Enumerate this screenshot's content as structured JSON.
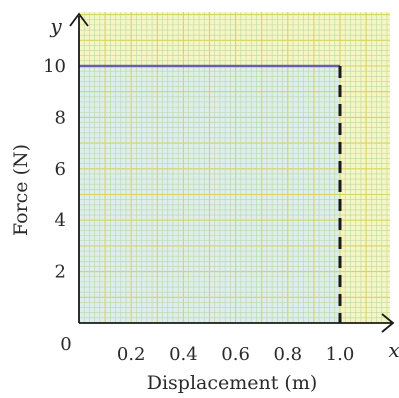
{
  "chart_data": {
    "type": "line",
    "title": "",
    "xlabel": "Displacement (m)",
    "ylabel": "Force (N)",
    "x_axis_symbol": "x",
    "y_axis_symbol": "y",
    "origin_label": "0",
    "xlim": [
      0,
      1.2
    ],
    "ylim": [
      0,
      12
    ],
    "x_ticks": [
      {
        "value": 0.2,
        "label": "0.2"
      },
      {
        "value": 0.4,
        "label": "0.4"
      },
      {
        "value": 0.6,
        "label": "0.6"
      },
      {
        "value": 0.8,
        "label": "0.8"
      },
      {
        "value": 1.0,
        "label": "1.0"
      }
    ],
    "y_ticks": [
      {
        "value": 2,
        "label": "2"
      },
      {
        "value": 4,
        "label": "4"
      },
      {
        "value": 6,
        "label": "6"
      },
      {
        "value": 8,
        "label": "8"
      },
      {
        "value": 10,
        "label": "10"
      }
    ],
    "grid": true,
    "series": [
      {
        "x": [
          0,
          1.0
        ],
        "y": [
          10,
          10
        ],
        "style": "solid",
        "color": "#6a5fa0"
      }
    ],
    "dashed_marker": {
      "x": 1.0,
      "y_from": 0,
      "y_to": 10,
      "color": "#1a1a1a"
    },
    "shaded_region": {
      "x_from": 0,
      "x_to": 1.0,
      "y_from": 0,
      "y_to": 10,
      "color": "#d9ecf3"
    },
    "colors": {
      "paper": "#f6f6c4",
      "grid_minor": "#b9d7a6",
      "grid_major": "#d6d463",
      "axis": "#1a1a1a"
    }
  }
}
